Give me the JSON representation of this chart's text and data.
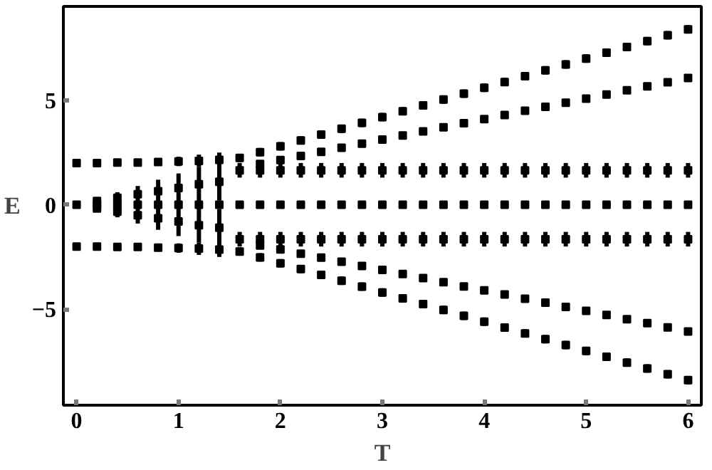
{
  "chart_data": {
    "type": "scatter",
    "xlabel": "T",
    "ylabel": "E",
    "xlim": [
      -0.13,
      6.13
    ],
    "ylim": [
      -9.6,
      9.5
    ],
    "xticks": [
      0,
      1,
      2,
      3,
      4,
      5,
      6
    ],
    "yticks": [
      -5,
      0,
      5
    ],
    "grid": false,
    "marker": "square",
    "series": [
      {
        "color": "#000000",
        "x": [
          0,
          0.2,
          0.4,
          0.6,
          0.8,
          1.0,
          1.2,
          1.4,
          1.6,
          1.8,
          2.0,
          2.2,
          2.4,
          2.6,
          2.8,
          3.0,
          3.2,
          3.4,
          3.6,
          3.8,
          4.0,
          4.2,
          4.4,
          4.6,
          4.8,
          5.0,
          5.2,
          5.4,
          5.6,
          5.8,
          6.0
        ],
        "values": [
          2,
          2,
          2.02,
          2.02,
          2.05,
          2.07,
          2.1,
          2.15,
          2.24,
          2.52,
          2.8,
          3.08,
          3.36,
          3.64,
          3.92,
          4.2,
          4.48,
          4.76,
          5.04,
          5.32,
          5.6,
          5.88,
          6.16,
          6.44,
          6.72,
          7.0,
          7.28,
          7.56,
          7.84,
          8.12,
          8.4
        ],
        "errors": [
          [
            1.95,
            2.05
          ],
          [
            1.95,
            2.05
          ],
          [
            1.95,
            2.1
          ],
          [
            1.9,
            2.15
          ],
          [
            1.9,
            2.2
          ],
          [
            1.85,
            2.3
          ],
          [
            1.8,
            2.4
          ],
          [
            1.8,
            2.5
          ],
          [
            2.04,
            2.44
          ],
          [
            2.32,
            2.72
          ],
          [
            2.6,
            3.0
          ],
          [
            2.88,
            3.28
          ],
          [
            3.16,
            3.56
          ],
          [
            3.44,
            3.84
          ],
          [
            3.72,
            4.12
          ],
          [
            4.0,
            4.4
          ],
          [
            4.28,
            4.68
          ],
          [
            4.56,
            4.96
          ],
          [
            4.84,
            5.24
          ],
          [
            5.12,
            5.52
          ],
          [
            5.4,
            5.8
          ],
          [
            5.68,
            6.08
          ],
          [
            5.96,
            6.36
          ],
          [
            6.24,
            6.64
          ],
          [
            6.52,
            6.92
          ],
          [
            6.8,
            7.2
          ],
          [
            7.08,
            7.48
          ],
          [
            7.36,
            7.76
          ],
          [
            7.64,
            8.04
          ],
          [
            7.92,
            8.32
          ],
          [
            8.2,
            8.6
          ]
        ]
      },
      {
        "color": "#000000",
        "x": [
          1.8,
          2.0,
          2.2,
          2.4,
          2.6,
          2.8,
          3.0,
          3.2,
          3.4,
          3.6,
          3.8,
          4.0,
          4.2,
          4.4,
          4.6,
          4.8,
          5.0,
          5.2,
          5.4,
          5.6,
          5.8,
          6.0
        ],
        "values": [
          1.95,
          2.14,
          2.34,
          2.53,
          2.73,
          2.93,
          3.12,
          3.32,
          3.51,
          3.71,
          3.91,
          4.1,
          4.3,
          4.5,
          4.69,
          4.89,
          5.08,
          5.28,
          5.48,
          5.67,
          5.87,
          6.07
        ]
      },
      {
        "color": "#000000",
        "x": [
          1.6,
          1.8,
          2.0,
          2.2,
          2.4,
          2.6,
          2.8,
          3.0,
          3.2,
          3.4,
          3.6,
          3.8,
          4.0,
          4.2,
          4.4,
          4.6,
          4.8,
          5.0,
          5.2,
          5.4,
          5.6,
          5.8,
          6.0
        ],
        "values": [
          1.65,
          1.65,
          1.65,
          1.65,
          1.65,
          1.65,
          1.65,
          1.65,
          1.65,
          1.65,
          1.65,
          1.65,
          1.65,
          1.65,
          1.65,
          1.65,
          1.65,
          1.65,
          1.65,
          1.65,
          1.65,
          1.65,
          1.65
        ],
        "errors": [
          [
            1.3,
            2.0
          ],
          [
            1.3,
            2.0
          ],
          [
            1.3,
            2.0
          ],
          [
            1.3,
            2.0
          ],
          [
            1.3,
            2.0
          ],
          [
            1.3,
            2.0
          ],
          [
            1.3,
            2.0
          ],
          [
            1.3,
            2.0
          ],
          [
            1.3,
            2.0
          ],
          [
            1.3,
            2.0
          ],
          [
            1.3,
            2.0
          ],
          [
            1.3,
            2.0
          ],
          [
            1.3,
            2.0
          ],
          [
            1.3,
            2.0
          ],
          [
            1.3,
            2.0
          ],
          [
            1.3,
            2.0
          ],
          [
            1.3,
            2.0
          ],
          [
            1.3,
            2.0
          ],
          [
            1.3,
            2.0
          ],
          [
            1.3,
            2.0
          ],
          [
            1.3,
            2.0
          ],
          [
            1.3,
            2.0
          ],
          [
            1.3,
            2.0
          ]
        ]
      },
      {
        "color": "#000000",
        "x": [
          0.2,
          0.4,
          0.6,
          0.8,
          1.0,
          1.2,
          1.4
        ],
        "values": [
          0.18,
          0.33,
          0.5,
          0.65,
          0.8,
          0.98,
          1.1
        ],
        "errors": [
          [
            0.05,
            0.3
          ],
          [
            0.05,
            0.6
          ],
          [
            0.1,
            0.9
          ],
          [
            0.1,
            1.2
          ],
          [
            0.1,
            1.5
          ],
          [
            0.15,
            1.8
          ],
          [
            0.2,
            2.0
          ]
        ]
      },
      {
        "color": "#000000",
        "x": [
          0,
          0.2,
          0.4,
          0.6,
          0.8,
          1.0,
          1.2,
          1.4,
          1.6,
          1.8,
          2.0,
          2.2,
          2.4,
          2.6,
          2.8,
          3.0,
          3.2,
          3.4,
          3.6,
          3.8,
          4.0,
          4.2,
          4.4,
          4.6,
          4.8,
          5.0,
          5.2,
          5.4,
          5.6,
          5.8,
          6.0
        ],
        "values": [
          0,
          0,
          0,
          0,
          0,
          0,
          0,
          0,
          0,
          0,
          0,
          0,
          0,
          0,
          0,
          0,
          0,
          0,
          0,
          0,
          0,
          0,
          0,
          0,
          0,
          0,
          0,
          0,
          0,
          0,
          0
        ]
      },
      {
        "color": "#000000",
        "x": [
          0.2,
          0.4,
          0.6,
          0.8,
          1.0,
          1.2,
          1.4
        ],
        "values": [
          -0.18,
          -0.33,
          -0.5,
          -0.65,
          -0.8,
          -0.98,
          -1.1
        ],
        "errors": [
          [
            -0.3,
            -0.05
          ],
          [
            -0.6,
            -0.05
          ],
          [
            -0.9,
            -0.1
          ],
          [
            -1.2,
            -0.1
          ],
          [
            -1.5,
            -0.1
          ],
          [
            -1.8,
            -0.15
          ],
          [
            -2.0,
            -0.2
          ]
        ]
      },
      {
        "color": "#000000",
        "x": [
          1.6,
          1.8,
          2.0,
          2.2,
          2.4,
          2.6,
          2.8,
          3.0,
          3.2,
          3.4,
          3.6,
          3.8,
          4.0,
          4.2,
          4.4,
          4.6,
          4.8,
          5.0,
          5.2,
          5.4,
          5.6,
          5.8,
          6.0
        ],
        "values": [
          -1.65,
          -1.65,
          -1.65,
          -1.65,
          -1.65,
          -1.65,
          -1.65,
          -1.65,
          -1.65,
          -1.65,
          -1.65,
          -1.65,
          -1.65,
          -1.65,
          -1.65,
          -1.65,
          -1.65,
          -1.65,
          -1.65,
          -1.65,
          -1.65,
          -1.65,
          -1.65
        ],
        "errors": [
          [
            -2.0,
            -1.3
          ],
          [
            -2.0,
            -1.3
          ],
          [
            -2.0,
            -1.3
          ],
          [
            -2.0,
            -1.3
          ],
          [
            -2.0,
            -1.3
          ],
          [
            -2.0,
            -1.3
          ],
          [
            -2.0,
            -1.3
          ],
          [
            -2.0,
            -1.3
          ],
          [
            -2.0,
            -1.3
          ],
          [
            -2.0,
            -1.3
          ],
          [
            -2.0,
            -1.3
          ],
          [
            -2.0,
            -1.3
          ],
          [
            -2.0,
            -1.3
          ],
          [
            -2.0,
            -1.3
          ],
          [
            -2.0,
            -1.3
          ],
          [
            -2.0,
            -1.3
          ],
          [
            -2.0,
            -1.3
          ],
          [
            -2.0,
            -1.3
          ],
          [
            -2.0,
            -1.3
          ],
          [
            -2.0,
            -1.3
          ],
          [
            -2.0,
            -1.3
          ],
          [
            -2.0,
            -1.3
          ],
          [
            -2.0,
            -1.3
          ]
        ]
      },
      {
        "color": "#000000",
        "x": [
          1.8,
          2.0,
          2.2,
          2.4,
          2.6,
          2.8,
          3.0,
          3.2,
          3.4,
          3.6,
          3.8,
          4.0,
          4.2,
          4.4,
          4.6,
          4.8,
          5.0,
          5.2,
          5.4,
          5.6,
          5.8,
          6.0
        ],
        "values": [
          -1.95,
          -2.14,
          -2.34,
          -2.53,
          -2.73,
          -2.93,
          -3.12,
          -3.32,
          -3.51,
          -3.71,
          -3.91,
          -4.1,
          -4.3,
          -4.5,
          -4.69,
          -4.89,
          -5.08,
          -5.28,
          -5.48,
          -5.67,
          -5.87,
          -6.07
        ]
      },
      {
        "color": "#000000",
        "x": [
          0,
          0.2,
          0.4,
          0.6,
          0.8,
          1.0,
          1.2,
          1.4,
          1.6,
          1.8,
          2.0,
          2.2,
          2.4,
          2.6,
          2.8,
          3.0,
          3.2,
          3.4,
          3.6,
          3.8,
          4.0,
          4.2,
          4.4,
          4.6,
          4.8,
          5.0,
          5.2,
          5.4,
          5.6,
          5.8,
          6.0
        ],
        "values": [
          -2,
          -2,
          -2.02,
          -2.02,
          -2.05,
          -2.07,
          -2.1,
          -2.15,
          -2.24,
          -2.52,
          -2.8,
          -3.08,
          -3.36,
          -3.64,
          -3.92,
          -4.2,
          -4.48,
          -4.76,
          -5.04,
          -5.32,
          -5.6,
          -5.88,
          -6.16,
          -6.44,
          -6.72,
          -7.0,
          -7.28,
          -7.56,
          -7.84,
          -8.12,
          -8.4
        ],
        "errors": [
          [
            -2.05,
            -1.95
          ],
          [
            -2.05,
            -1.95
          ],
          [
            -2.1,
            -1.95
          ],
          [
            -2.15,
            -1.9
          ],
          [
            -2.2,
            -1.9
          ],
          [
            -2.3,
            -1.85
          ],
          [
            -2.4,
            -1.8
          ],
          [
            -2.5,
            -1.8
          ],
          [
            -2.44,
            -2.04
          ],
          [
            -2.72,
            -2.32
          ],
          [
            -3.0,
            -2.6
          ],
          [
            -3.28,
            -2.88
          ],
          [
            -3.56,
            -3.16
          ],
          [
            -3.84,
            -3.44
          ],
          [
            -4.12,
            -3.72
          ],
          [
            -4.4,
            -4.0
          ],
          [
            -4.68,
            -4.28
          ],
          [
            -4.96,
            -4.56
          ],
          [
            -5.24,
            -4.84
          ],
          [
            -5.52,
            -5.12
          ],
          [
            -5.8,
            -5.4
          ],
          [
            -6.08,
            -5.68
          ],
          [
            -6.36,
            -5.96
          ],
          [
            -6.64,
            -6.24
          ],
          [
            -6.92,
            -6.52
          ],
          [
            -7.2,
            -6.8
          ],
          [
            -7.48,
            -7.08
          ],
          [
            -7.76,
            -7.36
          ],
          [
            -8.04,
            -7.64
          ],
          [
            -8.32,
            -7.92
          ],
          [
            -8.6,
            -8.2
          ]
        ]
      }
    ]
  }
}
